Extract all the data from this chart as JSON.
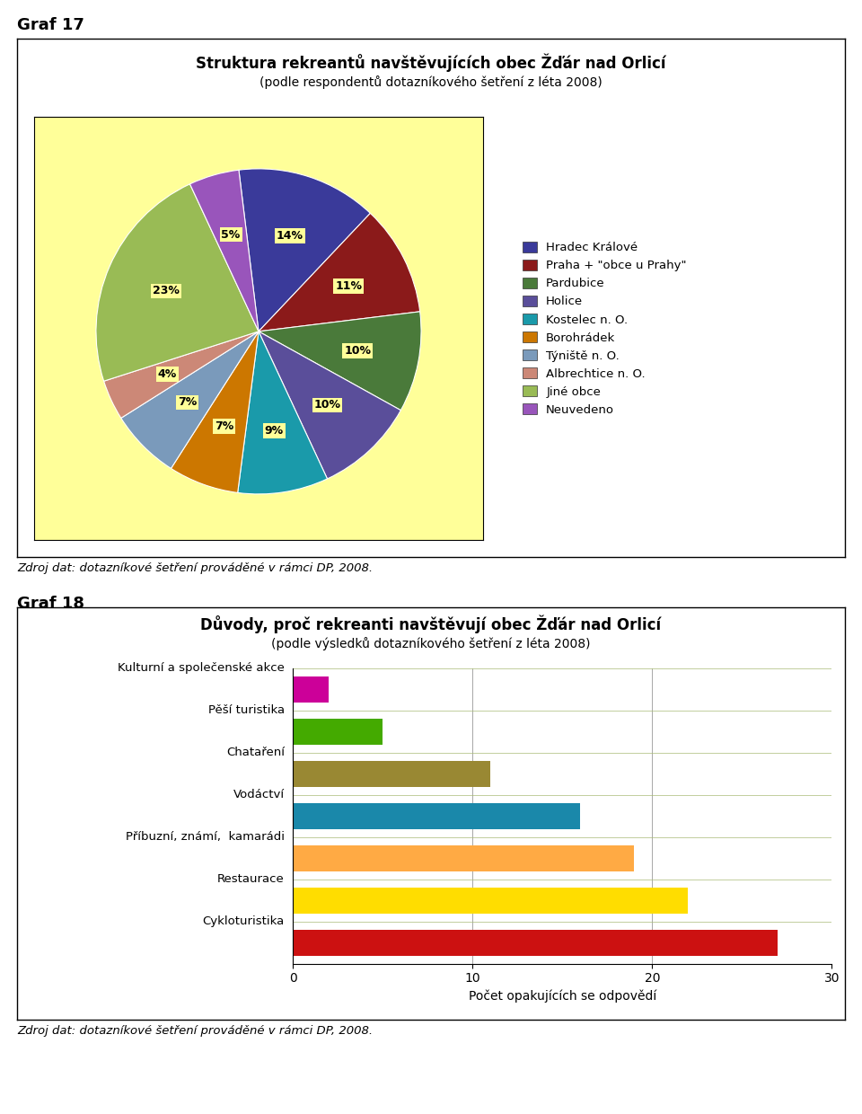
{
  "graf17_title": "Struktura rekreantů navštěvujících obec Žďár nad Orlicí",
  "graf17_subtitle": "(podle respondentů dotazníkového šetření z léta 2008)",
  "graf17_labels": [
    "Hradec Králové",
    "Praha + \"obce u Prahy\"",
    "Pardubice",
    "Holice",
    "Kostelec n. O.",
    "Borohrádek",
    "Týniště n. O.",
    "Albrechtice n. O.",
    "Jiné obce",
    "Neuvedeno"
  ],
  "graf17_values": [
    14,
    11,
    10,
    10,
    9,
    7,
    7,
    4,
    23,
    5
  ],
  "graf17_colors": [
    "#3a3a9a",
    "#8B1A1A",
    "#4a7a3a",
    "#5a4e9a",
    "#1a9aaa",
    "#cc7700",
    "#7a9abb",
    "#cc8877",
    "#99bb55",
    "#9955bb"
  ],
  "graf17_bg": "#ffff99",
  "graf18_title": "Důvody, proč rekreanti navštěvují obec Žďár nad Orlicí",
  "graf18_subtitle": "(podle výsledků dotazníkového šetření z léta 2008)",
  "graf18_categories": [
    "Kulturní a společenské akce",
    "Pěší turistika",
    "Chataření",
    "Vodáctví",
    "Příbuzní, známí,  kamarádi",
    "Restaurace",
    "Cykloturistika"
  ],
  "graf18_values": [
    2,
    5,
    11,
    16,
    19,
    22,
    27
  ],
  "graf18_colors": [
    "#cc0099",
    "#44aa00",
    "#998833",
    "#1a88aa",
    "#ffaa44",
    "#ffdd00",
    "#cc1111"
  ],
  "graf18_xlabel": "Počet opakujících se odpovědí",
  "graf18_xlim": [
    0,
    30
  ],
  "graf18_xticks": [
    0,
    10,
    20,
    30
  ],
  "source_text": "Zdroj dat: dotazníkové šetření prováděné v rámci DP, 2008.",
  "graf17_header": "Graf 17",
  "graf18_header": "Graf 18",
  "bg_color": "#ffffff"
}
